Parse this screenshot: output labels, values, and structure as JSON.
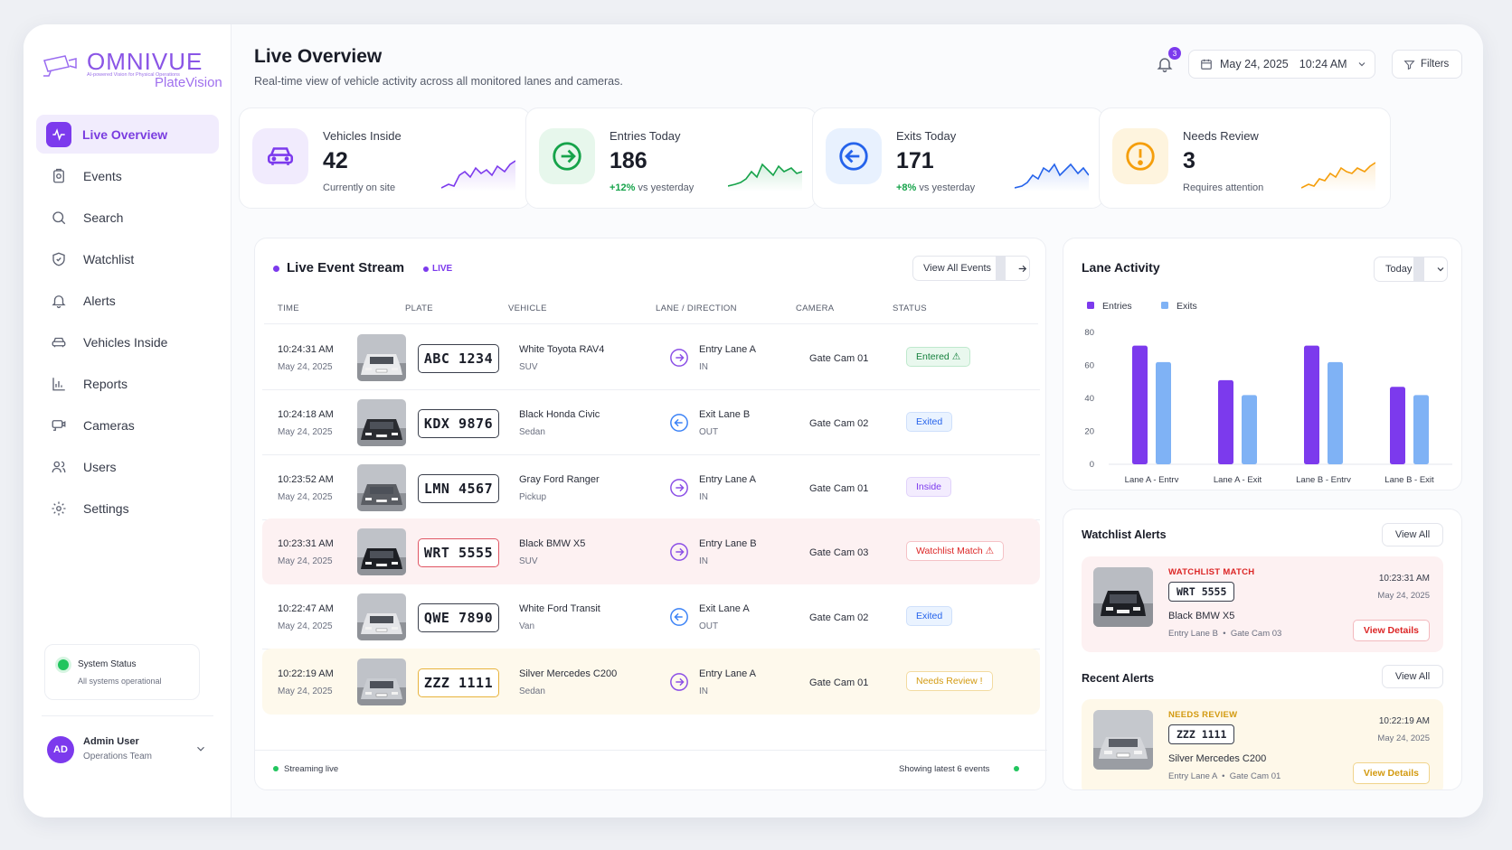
{
  "brand": {
    "name": "OMNIVUE",
    "tagline": "AI-powered Vision for Physical Operations",
    "product": "PlateVision",
    "icon": "camera-logo-icon"
  },
  "sidebar": {
    "items": [
      {
        "label": "Live Overview",
        "icon": "activity-icon",
        "active": true
      },
      {
        "label": "Events",
        "icon": "events-icon"
      },
      {
        "label": "Search",
        "icon": "search-icon"
      },
      {
        "label": "Watchlist",
        "icon": "shield-icon"
      },
      {
        "label": "Alerts",
        "icon": "bell-icon"
      },
      {
        "label": "Vehicles Inside",
        "icon": "car-icon"
      },
      {
        "label": "Reports",
        "icon": "chart-icon"
      },
      {
        "label": "Cameras",
        "icon": "camera-icon"
      },
      {
        "label": "Users",
        "icon": "users-icon"
      },
      {
        "label": "Settings",
        "icon": "gear-icon"
      }
    ],
    "system_status": {
      "title": "System Status",
      "subtitle": "All systems operational",
      "color": "#22c55e"
    },
    "user": {
      "initials": "AD",
      "name": "Admin User",
      "role": "Operations Team"
    }
  },
  "header": {
    "title": "Live Overview",
    "subtitle": "Real-time view of vehicle activity across all monitored lanes and cameras.",
    "notifications": "3",
    "date": "May 24, 2025",
    "time": "10:24 AM",
    "filters_label": "Filters"
  },
  "stats": [
    {
      "label": "Vehicles Inside",
      "value": "42",
      "note": "Currently on site",
      "delta": "",
      "color": "#7c3aed",
      "icon": "car-icon"
    },
    {
      "label": "Entries Today",
      "value": "186",
      "delta": "+12%",
      "note": "vs yesterday",
      "color": "#16a34a",
      "icon": "arrow-right-circle-icon"
    },
    {
      "label": "Exits Today",
      "value": "171",
      "delta": "+8%",
      "note": "vs yesterday",
      "color": "#2563eb",
      "icon": "arrow-left-circle-icon"
    },
    {
      "label": "Needs Review",
      "value": "3",
      "note": "Requires attention",
      "delta": "",
      "color": "#f59e0b",
      "icon": "alert-circle-icon"
    }
  ],
  "stream": {
    "title": "Live Event Stream",
    "live_label": "LIVE",
    "view_all_label": "View All Events",
    "columns": [
      "TIME",
      "PLATE",
      "VEHICLE",
      "LANE / DIRECTION",
      "CAMERA",
      "STATUS"
    ],
    "rows": [
      {
        "time": "10:24:31 AM",
        "date": "May 24, 2025",
        "plate": "ABC 1234",
        "vehicle": "White Toyota RAV4",
        "type": "SUV",
        "lane": "Entry Lane A",
        "direction": "IN",
        "camera": "Gate Cam 01",
        "status": "Entered ⚠",
        "status_kind": "entered",
        "car_color": "#e9eaec"
      },
      {
        "time": "10:24:18 AM",
        "date": "May 24, 2025",
        "plate": "KDX 9876",
        "vehicle": "Black Honda Civic",
        "type": "Sedan",
        "lane": "Exit Lane B",
        "direction": "OUT",
        "camera": "Gate Cam 02",
        "status": "Exited",
        "status_kind": "exited",
        "car_color": "#2a2c31"
      },
      {
        "time": "10:23:52 AM",
        "date": "May 24, 2025",
        "plate": "LMN 4567",
        "vehicle": "Gray Ford Ranger",
        "type": "Pickup",
        "lane": "Entry Lane A",
        "direction": "IN",
        "camera": "Gate Cam 01",
        "status": "Inside",
        "status_kind": "inside",
        "car_color": "#5a5d63"
      },
      {
        "time": "10:23:31 AM",
        "date": "May 24, 2025",
        "plate": "WRT 5555",
        "vehicle": "Black BMW X5",
        "type": "SUV",
        "lane": "Entry Lane B",
        "direction": "IN",
        "camera": "Gate Cam 03",
        "status": "Watchlist Match ⚠",
        "status_kind": "watch",
        "car_color": "#1d1f24"
      },
      {
        "time": "10:22:47 AM",
        "date": "May 24, 2025",
        "plate": "QWE 7890",
        "vehicle": "White Ford Transit",
        "type": "Van",
        "lane": "Exit Lane A",
        "direction": "OUT",
        "camera": "Gate Cam 02",
        "status": "Exited",
        "status_kind": "exited",
        "car_color": "#e4e5e8"
      },
      {
        "time": "10:22:19 AM",
        "date": "May 24, 2025",
        "plate": "ZZZ 1111",
        "vehicle": "Silver Mercedes C200",
        "type": "Sedan",
        "lane": "Entry Lane A",
        "direction": "IN",
        "camera": "Gate Cam 01",
        "status": "Needs Review !",
        "status_kind": "review",
        "car_color": "#c9ccd1"
      }
    ],
    "footer_left": "Streaming live",
    "footer_right": "Showing latest 6 events"
  },
  "lane_activity": {
    "title": "Lane Activity",
    "range": "Today"
  },
  "chart_data": {
    "type": "bar",
    "categories": [
      "Lane A - Entry",
      "Lane A - Exit",
      "Lane B - Entry",
      "Lane B - Exit"
    ],
    "series": [
      {
        "name": "Entries",
        "color": "#7c3aed",
        "values": [
          72,
          51,
          72,
          47
        ]
      },
      {
        "name": "Exits",
        "color": "#7fb2f5",
        "values": [
          62,
          42,
          62,
          42
        ]
      }
    ],
    "yticks": [
      0,
      20,
      40,
      60,
      80
    ],
    "ylim": [
      0,
      80
    ],
    "legend": "top-left",
    "grid": false
  },
  "watchlist_alerts": {
    "title": "Watchlist Alerts",
    "view_all": "View All",
    "alert": {
      "tag": "WATCHLIST MATCH",
      "plate": "WRT 5555",
      "vehicle": "Black BMW X5",
      "lane": "Entry Lane B",
      "camera": "Gate Cam 03",
      "time": "10:23:31 AM",
      "date": "May 24, 2025",
      "button": "View Details"
    }
  },
  "recent_alerts": {
    "title": "Recent Alerts",
    "view_all": "View All",
    "alert": {
      "tag": "NEEDS REVIEW",
      "plate": "ZZZ 1111",
      "vehicle": "Silver Mercedes C200",
      "lane": "Entry Lane A",
      "camera": "Gate Cam 01",
      "time": "10:22:19 AM",
      "date": "May 24, 2025",
      "button": "View Details"
    }
  }
}
